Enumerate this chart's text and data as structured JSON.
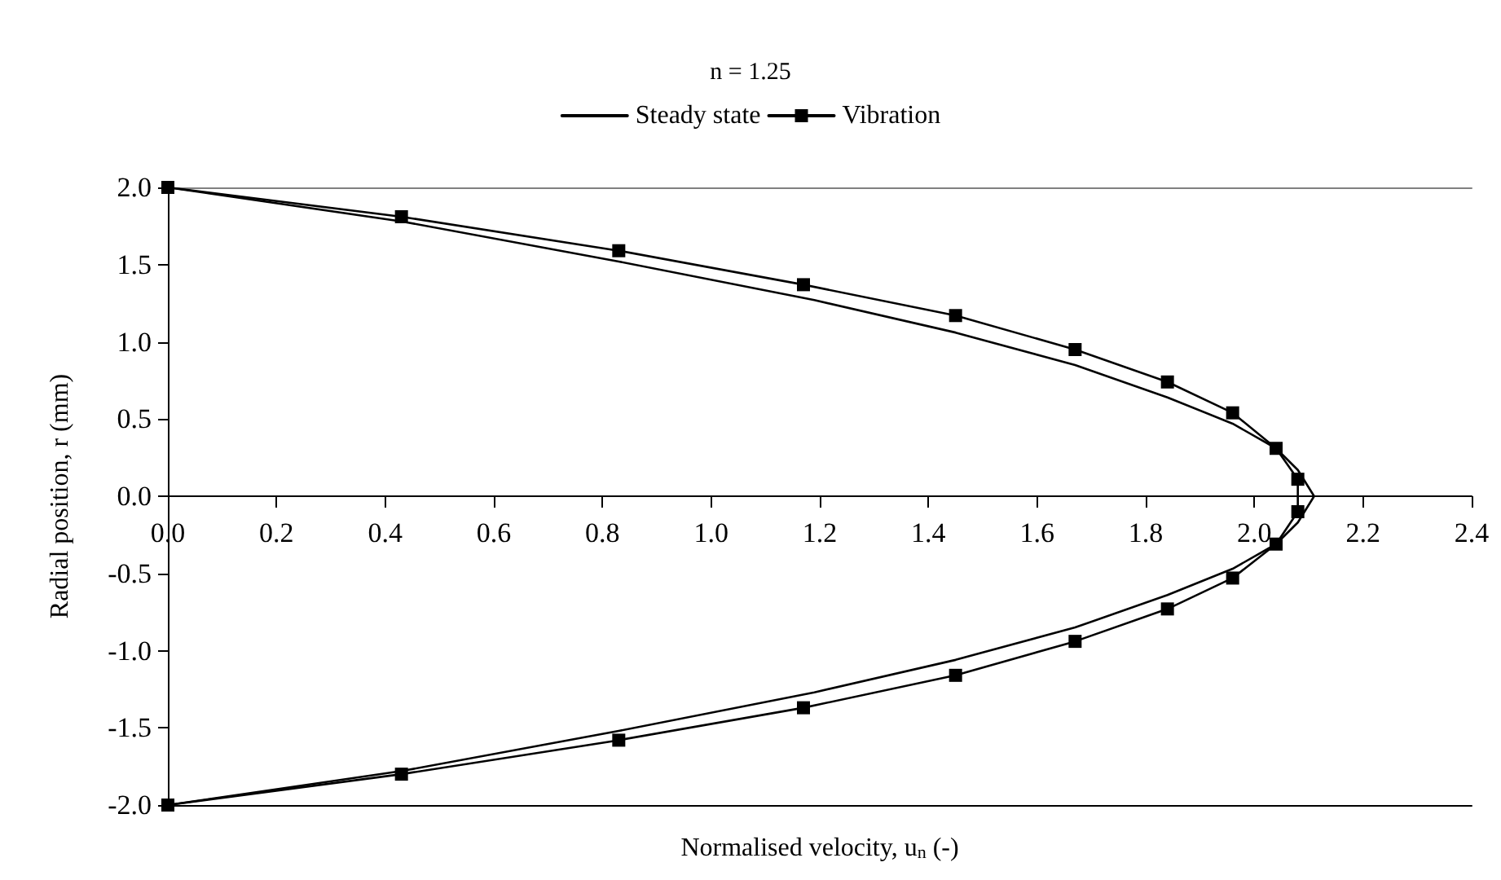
{
  "chart_data": {
    "type": "line",
    "title": "n = 1.25",
    "xlabel": "Normalised velocity, u$_{n}$ (-)",
    "ylabel": "Radial position, r (mm)",
    "xlim": [
      0,
      2.4
    ],
    "xticks": [
      {
        "value": 0,
        "label": "0.0"
      },
      0.2,
      0.4,
      0.6,
      0.8,
      {
        "value": 1,
        "label": "1.0"
      },
      1.2,
      1.4,
      1.6,
      1.8,
      {
        "value": 2,
        "label": "2.0"
      },
      2.2,
      2.4
    ],
    "ylim": [
      -2,
      2
    ],
    "yticks": [
      {
        "value": -2,
        "label": "-2.0"
      },
      -1.5,
      {
        "value": -1,
        "label": "-1.0"
      },
      -0.5,
      {
        "value": 0,
        "label": "0.0"
      },
      0.5,
      {
        "value": 1,
        "label": "1.0"
      },
      1.5,
      {
        "value": 2,
        "label": "2.0"
      }
    ],
    "legend": "top",
    "line_style": "solid",
    "series": [
      {
        "name": "Steady state",
        "color": "#000000",
        "marker": "none",
        "x": [
          0,
          0.43,
          0.83,
          1.19,
          1.45,
          1.67,
          1.84,
          1.96,
          2.04,
          2.08,
          2.11,
          2.08,
          2.04,
          1.96,
          1.84,
          1.67,
          1.45,
          1.19,
          0.83,
          0.43,
          0
        ],
        "values": [
          2,
          1.78,
          1.52,
          1.27,
          1.06,
          0.85,
          0.64,
          0.47,
          0.31,
          0.17,
          0,
          -0.17,
          -0.31,
          -0.47,
          -0.64,
          -0.85,
          -1.06,
          -1.27,
          -1.52,
          -1.78,
          -2
        ]
      },
      {
        "name": "Vibration",
        "color": "#000000",
        "marker": "square",
        "x": [
          0,
          0.43,
          0.83,
          1.17,
          1.45,
          1.67,
          1.84,
          1.96,
          2.04,
          2.08,
          2.08,
          2.04,
          1.96,
          1.84,
          1.67,
          1.45,
          1.17,
          0.83,
          0.43,
          0
        ],
        "values": [
          2,
          1.81,
          1.59,
          1.37,
          1.17,
          0.95,
          0.74,
          0.54,
          0.31,
          0.11,
          -0.1,
          -0.31,
          -0.53,
          -0.73,
          -0.94,
          -1.16,
          -1.37,
          -1.58,
          -1.8,
          -2
        ]
      }
    ]
  }
}
